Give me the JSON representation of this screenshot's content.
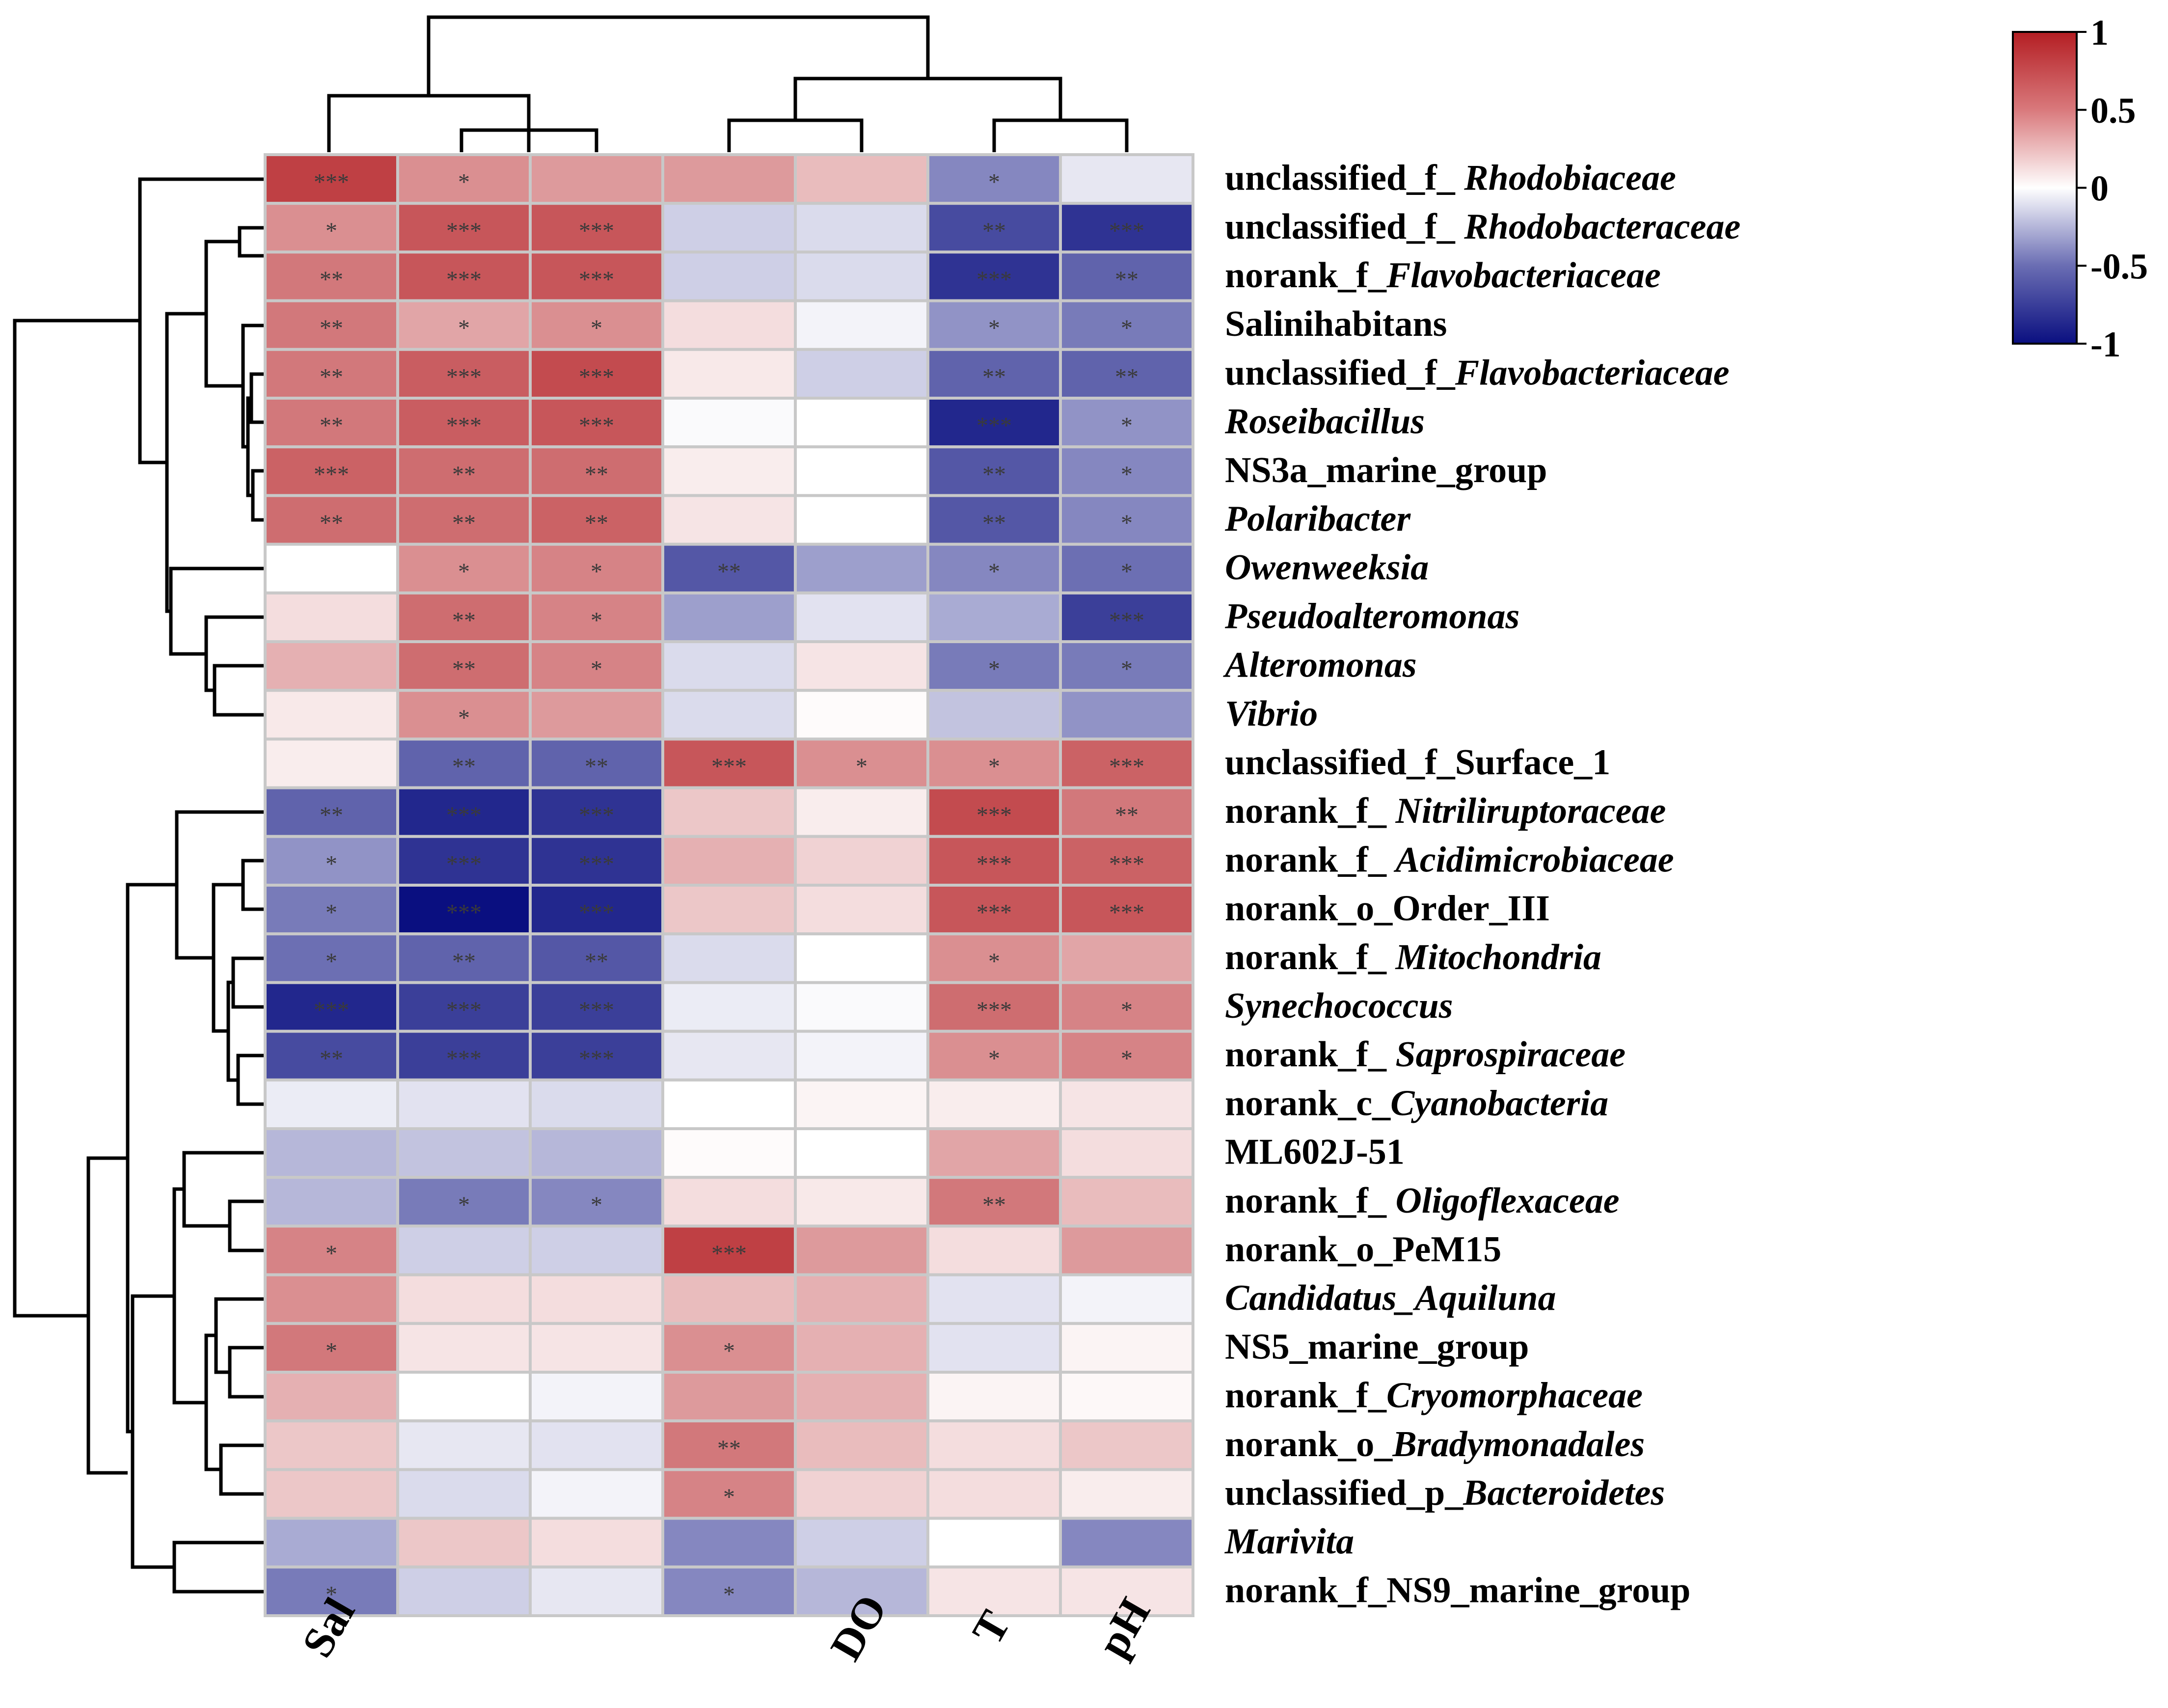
{
  "chart_data": {
    "type": "heatmap",
    "title": "",
    "columns": [
      "Sal",
      "",
      "",
      "",
      "DO",
      "T",
      "pH"
    ],
    "rows": [
      {
        "label": [
          {
            "t": "unclassified_f_ ",
            "i": false
          },
          {
            "t": "Rhodobiaceae",
            "i": true
          }
        ],
        "values": [
          0.85,
          0.5,
          0.45,
          0.45,
          0.3,
          -0.5,
          -0.1
        ],
        "sig": [
          "***",
          "*",
          "",
          "",
          "",
          "*",
          ""
        ]
      },
      {
        "label": [
          {
            "t": "unclassified_f_ ",
            "i": false
          },
          {
            "t": "Rhodobacteraceae",
            "i": true
          }
        ],
        "values": [
          0.5,
          0.75,
          0.75,
          -0.2,
          -0.15,
          -0.75,
          -0.85
        ],
        "sig": [
          "*",
          "***",
          "***",
          "",
          "",
          "**",
          "***"
        ]
      },
      {
        "label": [
          {
            "t": "norank_f_",
            "i": false
          },
          {
            "t": "Flavobacteriaceae",
            "i": true
          }
        ],
        "values": [
          0.6,
          0.75,
          0.75,
          -0.2,
          -0.15,
          -0.85,
          -0.65
        ],
        "sig": [
          "**",
          "***",
          "***",
          "",
          "",
          "***",
          "**"
        ]
      },
      {
        "label": [
          {
            "t": "Salinihabitans",
            "i": false
          }
        ],
        "values": [
          0.6,
          0.4,
          0.5,
          0.15,
          -0.05,
          -0.45,
          -0.55
        ],
        "sig": [
          "**",
          "*",
          "*",
          "",
          "",
          "*",
          "*"
        ]
      },
      {
        "label": [
          {
            "t": "unclassified_f_",
            "i": false
          },
          {
            "t": "Flavobacteriaceae",
            "i": true
          }
        ],
        "values": [
          0.6,
          0.72,
          0.8,
          0.1,
          -0.2,
          -0.65,
          -0.65
        ],
        "sig": [
          "**",
          "***",
          "***",
          "",
          "",
          "**",
          "**"
        ]
      },
      {
        "label": [
          {
            "t": "Roseibacillus",
            "i": true
          }
        ],
        "values": [
          0.6,
          0.72,
          0.75,
          -0.02,
          0.0,
          -0.9,
          -0.45
        ],
        "sig": [
          "**",
          "***",
          "***",
          "",
          "",
          "***",
          "*"
        ]
      },
      {
        "label": [
          {
            "t": " NS3a_marine_group",
            "i": false
          }
        ],
        "values": [
          0.7,
          0.65,
          0.65,
          0.08,
          0.0,
          -0.7,
          -0.5
        ],
        "sig": [
          "***",
          "**",
          "**",
          "",
          "",
          "**",
          "*"
        ]
      },
      {
        "label": [
          {
            "t": "Polaribacter",
            "i": true
          }
        ],
        "values": [
          0.65,
          0.65,
          0.7,
          0.12,
          0.0,
          -0.7,
          -0.5
        ],
        "sig": [
          "**",
          "**",
          "**",
          "",
          "",
          "**",
          "*"
        ]
      },
      {
        "label": [
          {
            "t": "Owenweeksia",
            "i": true
          }
        ],
        "values": [
          0.0,
          0.5,
          0.55,
          -0.7,
          -0.4,
          -0.5,
          -0.6
        ],
        "sig": [
          "",
          "*",
          "*",
          "**",
          "",
          "*",
          "*"
        ]
      },
      {
        "label": [
          {
            "t": "Pseudoalteromonas",
            "i": true
          }
        ],
        "values": [
          0.15,
          0.65,
          0.55,
          -0.4,
          -0.12,
          -0.35,
          -0.8
        ],
        "sig": [
          "",
          "**",
          "*",
          "",
          "",
          "",
          "***"
        ]
      },
      {
        "label": [
          {
            "t": "Alteromonas",
            "i": true
          }
        ],
        "values": [
          0.35,
          0.65,
          0.55,
          -0.15,
          0.12,
          -0.55,
          -0.55
        ],
        "sig": [
          "",
          "**",
          "*",
          "",
          "",
          "*",
          "*"
        ]
      },
      {
        "label": [
          {
            "t": "Vibrio",
            "i": true
          }
        ],
        "values": [
          0.1,
          0.5,
          0.45,
          -0.15,
          0.02,
          -0.25,
          -0.45
        ],
        "sig": [
          "",
          "*",
          "",
          "",
          "",
          "",
          ""
        ]
      },
      {
        "label": [
          {
            "t": "unclassified_f_Surface_1",
            "i": false
          }
        ],
        "values": [
          0.08,
          -0.65,
          -0.65,
          0.75,
          0.5,
          0.5,
          0.7
        ],
        "sig": [
          "",
          "**",
          "**",
          "***",
          "*",
          "*",
          "***"
        ]
      },
      {
        "label": [
          {
            "t": "norank_f_ ",
            "i": false
          },
          {
            "t": "Nitriliruptoraceae",
            "i": true
          }
        ],
        "values": [
          -0.65,
          -0.9,
          -0.85,
          0.25,
          0.08,
          0.8,
          0.6
        ],
        "sig": [
          "**",
          "***",
          "***",
          "",
          "",
          "***",
          "**"
        ]
      },
      {
        "label": [
          {
            "t": "norank_f_ ",
            "i": false
          },
          {
            "t": "Acidimicrobiaceae",
            "i": true
          }
        ],
        "values": [
          -0.45,
          -0.85,
          -0.85,
          0.35,
          0.2,
          0.75,
          0.7
        ],
        "sig": [
          "*",
          "***",
          "***",
          "",
          "",
          "***",
          "***"
        ]
      },
      {
        "label": [
          {
            "t": "norank_o_Order_III",
            "i": false
          }
        ],
        "values": [
          -0.55,
          -1.0,
          -0.9,
          0.25,
          0.15,
          0.75,
          0.75
        ],
        "sig": [
          "*",
          "***",
          "***",
          "",
          "",
          "***",
          "***"
        ]
      },
      {
        "label": [
          {
            "t": "norank_f_ ",
            "i": false
          },
          {
            "t": "Mitochondria",
            "i": true
          }
        ],
        "values": [
          -0.6,
          -0.65,
          -0.7,
          -0.15,
          0.0,
          0.5,
          0.4
        ],
        "sig": [
          "*",
          "**",
          "**",
          "",
          "",
          "*",
          ""
        ]
      },
      {
        "label": [
          {
            "t": "Synechococcus",
            "i": true
          }
        ],
        "values": [
          -0.9,
          -0.8,
          -0.8,
          -0.08,
          -0.02,
          0.65,
          0.55
        ],
        "sig": [
          "***",
          "***",
          "***",
          "",
          "",
          "***",
          "*"
        ]
      },
      {
        "label": [
          {
            "t": "norank_f_ ",
            "i": false
          },
          {
            "t": "Saprospiraceae",
            "i": true
          }
        ],
        "values": [
          -0.75,
          -0.8,
          -0.8,
          -0.1,
          -0.05,
          0.5,
          0.55
        ],
        "sig": [
          "**",
          "***",
          "***",
          "",
          "",
          "*",
          "*"
        ]
      },
      {
        "label": [
          {
            "t": "norank_c_",
            "i": false
          },
          {
            "t": "Cyanobacteria",
            "i": true
          }
        ],
        "values": [
          -0.08,
          -0.12,
          -0.15,
          0.0,
          0.05,
          0.08,
          0.12
        ],
        "sig": [
          "",
          "",
          "",
          "",
          "",
          "",
          ""
        ]
      },
      {
        "label": [
          {
            "t": "ML602J-51",
            "i": false
          }
        ],
        "values": [
          -0.3,
          -0.25,
          -0.3,
          0.02,
          0.0,
          0.4,
          0.15
        ],
        "sig": [
          "",
          "",
          "",
          "",
          "",
          "",
          ""
        ]
      },
      {
        "label": [
          {
            "t": "norank_f_ ",
            "i": false
          },
          {
            "t": "Oligoflexaceae",
            "i": true
          }
        ],
        "values": [
          -0.3,
          -0.55,
          -0.5,
          0.15,
          0.1,
          0.6,
          0.3
        ],
        "sig": [
          "",
          "*",
          "*",
          "",
          "",
          "**",
          ""
        ]
      },
      {
        "label": [
          {
            "t": "norank_o_PeM15",
            "i": false
          }
        ],
        "values": [
          0.55,
          -0.2,
          -0.2,
          0.85,
          0.45,
          0.15,
          0.45
        ],
        "sig": [
          "*",
          "",
          "",
          "***",
          "",
          "",
          ""
        ]
      },
      {
        "label": [
          {
            "t": "Candidatus_Aquiluna",
            "i": true
          }
        ],
        "values": [
          0.5,
          0.15,
          0.15,
          0.3,
          0.35,
          -0.12,
          -0.05
        ],
        "sig": [
          "",
          "",
          "",
          "",
          "",
          "",
          ""
        ]
      },
      {
        "label": [
          {
            "t": "NS5_marine_group",
            "i": false
          }
        ],
        "values": [
          0.6,
          0.12,
          0.12,
          0.5,
          0.35,
          -0.12,
          0.05
        ],
        "sig": [
          "*",
          "",
          "",
          "*",
          "",
          "",
          ""
        ]
      },
      {
        "label": [
          {
            "t": "norank_f_",
            "i": false
          },
          {
            "t": "Cryomorphaceae",
            "i": true
          }
        ],
        "values": [
          0.35,
          0.0,
          -0.05,
          0.45,
          0.35,
          0.05,
          0.03
        ],
        "sig": [
          "",
          "",
          "",
          "",
          "",
          "",
          ""
        ]
      },
      {
        "label": [
          {
            "t": "norank_o_",
            "i": false
          },
          {
            "t": "Bradymonadales",
            "i": true
          }
        ],
        "values": [
          0.25,
          -0.1,
          -0.12,
          0.6,
          0.3,
          0.15,
          0.25
        ],
        "sig": [
          "",
          "",
          "",
          "**",
          "",
          "",
          ""
        ]
      },
      {
        "label": [
          {
            "t": "unclassified_p_",
            "i": false
          },
          {
            "t": "Bacteroidetes",
            "i": true
          }
        ],
        "values": [
          0.25,
          -0.15,
          -0.05,
          0.55,
          0.2,
          0.15,
          0.08
        ],
        "sig": [
          "",
          "",
          "",
          "*",
          "",
          "",
          ""
        ]
      },
      {
        "label": [
          {
            "t": "Marivita",
            "i": true
          }
        ],
        "values": [
          -0.35,
          0.25,
          0.15,
          -0.5,
          -0.2,
          0.0,
          -0.5
        ],
        "sig": [
          "",
          "",
          "",
          "",
          "",
          "",
          ""
        ]
      },
      {
        "label": [
          {
            "t": "norank_f_NS9_marine_group",
            "i": false
          }
        ],
        "values": [
          -0.55,
          -0.2,
          -0.1,
          -0.5,
          -0.3,
          0.12,
          0.12
        ],
        "sig": [
          "*",
          "",
          "",
          "*",
          "",
          "",
          ""
        ]
      }
    ],
    "colorbar": {
      "ticks": [
        "1",
        "0.5",
        "0",
        "-0.5",
        "-1"
      ],
      "range": [
        -1,
        1
      ]
    },
    "colors": {
      "low": "#0a0f80",
      "mid": "#ffffff",
      "high": "#b41e23",
      "cell_border": "#c8c8c8",
      "dendrogram": "#000000",
      "star": "#3a3a3a"
    }
  }
}
